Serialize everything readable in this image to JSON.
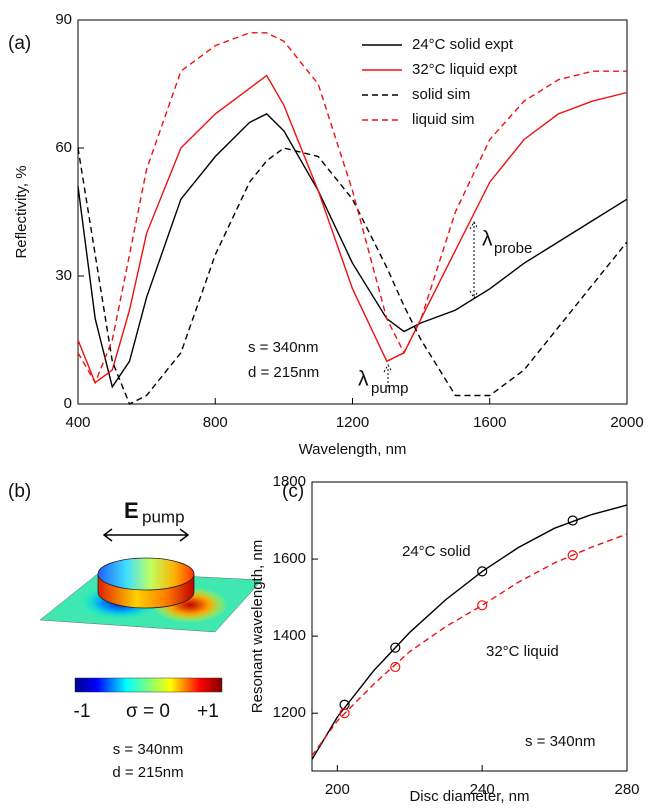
{
  "chart_data": [
    {
      "type": "line",
      "panel_label": "(a)",
      "xlabel": "Wavelength, nm",
      "ylabel": "Reflectivity, %",
      "x": [
        400,
        450,
        500,
        550,
        600,
        700,
        800,
        900,
        950,
        1000,
        1100,
        1200,
        1300,
        1350,
        1400,
        1500,
        1600,
        1700,
        1800,
        1900,
        2000
      ],
      "series": [
        {
          "name": "24°C solid expt",
          "color": "#000000",
          "dash": false,
          "values": [
            51,
            20,
            4,
            10,
            25,
            48,
            58,
            66,
            68,
            64,
            50,
            33,
            20,
            17,
            19,
            22,
            27,
            33,
            38,
            43,
            48
          ]
        },
        {
          "name": "32°C liquid expt",
          "color": "#ee1111",
          "dash": false,
          "values": [
            15,
            5,
            8,
            22,
            40,
            60,
            68,
            74,
            77,
            70,
            50,
            27,
            10,
            12,
            20,
            36,
            52,
            62,
            68,
            71,
            73
          ]
        },
        {
          "name": "solid sim",
          "color": "#000000",
          "dash": true,
          "values": [
            60,
            35,
            10,
            0,
            2,
            12,
            35,
            52,
            57,
            60,
            58,
            48,
            32,
            23,
            15,
            2,
            2,
            8,
            18,
            28,
            38
          ]
        },
        {
          "name": "liquid sim",
          "color": "#ee1111",
          "dash": true,
          "values": [
            12,
            5,
            15,
            35,
            55,
            78,
            84,
            87,
            87,
            85,
            75,
            50,
            20,
            12,
            20,
            45,
            62,
            71,
            76,
            78,
            78
          ]
        }
      ],
      "xlim": [
        400,
        2000
      ],
      "xticks": [
        400,
        800,
        1200,
        1600,
        2000
      ],
      "ylim": [
        0,
        90
      ],
      "yticks": [
        0,
        30,
        60,
        90
      ],
      "legend": "upper right",
      "annotations": [
        "s = 340nm",
        "d = 215nm"
      ],
      "pump_label": [
        "λ",
        "pump"
      ],
      "probe_label": [
        "λ",
        "probe"
      ]
    },
    {
      "type": "scatter",
      "panel_label": "(c)",
      "xlabel": "Disc diameter, nm",
      "ylabel": "Resonant wavelength, nm",
      "series": [
        {
          "name": "24°C solid",
          "color": "#000000",
          "dash": false,
          "x": [
            202,
            216,
            240,
            265
          ],
          "values": [
            1222,
            1370,
            1568,
            1700
          ],
          "fit_x": [
            193,
            200,
            210,
            220,
            230,
            240,
            250,
            260,
            270,
            280
          ],
          "fit_values": [
            1080,
            1190,
            1310,
            1410,
            1495,
            1568,
            1630,
            1680,
            1715,
            1740
          ]
        },
        {
          "name": "32°C liquid",
          "color": "#ee1111",
          "dash": true,
          "x": [
            202,
            216,
            240,
            265
          ],
          "values": [
            1200,
            1320,
            1480,
            1610
          ],
          "fit_x": [
            193,
            200,
            210,
            220,
            230,
            240,
            250,
            260,
            270,
            280
          ],
          "fit_values": [
            1090,
            1180,
            1275,
            1360,
            1425,
            1480,
            1540,
            1590,
            1630,
            1665
          ]
        }
      ],
      "xlim": [
        193,
        280
      ],
      "xticks": [
        200,
        240,
        280
      ],
      "ylim": [
        1050,
        1800
      ],
      "yticks": [
        1200,
        1400,
        1600,
        1800
      ],
      "annotations": [
        "s = 340nm"
      ]
    }
  ],
  "panel_b": {
    "panel_label": "(b)",
    "field": "E",
    "field_sub": "pump",
    "colorbar": [
      "-1",
      "σ = 0",
      "+1"
    ],
    "params": [
      "s = 340nm",
      "d = 215nm"
    ]
  }
}
